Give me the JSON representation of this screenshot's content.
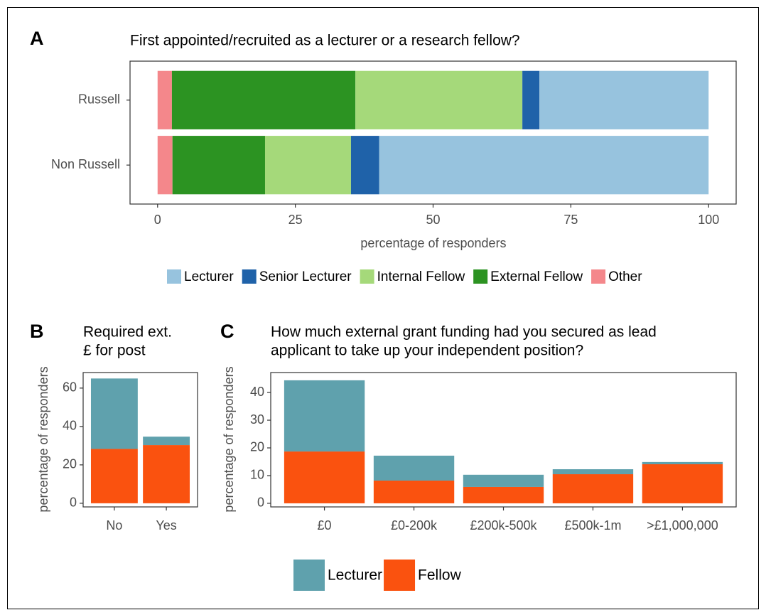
{
  "chart_data": [
    {
      "type": "bar",
      "panel": "A",
      "orientation": "horizontal",
      "stacked": true,
      "title": "First appointed/recruited as a lecturer or a research fellow?",
      "categories": [
        "Russell",
        "Non Russell"
      ],
      "series": [
        {
          "name": "Lecturer",
          "color": "#97c3de",
          "values": [
            30.7,
            59.8
          ]
        },
        {
          "name": "Senior Lecturer",
          "color": "#1f62a9",
          "values": [
            3.1,
            5.1
          ]
        },
        {
          "name": "Internal Fellow",
          "color": "#a5d97a",
          "values": [
            30.3,
            15.6
          ]
        },
        {
          "name": "External Fellow",
          "color": "#2c9322",
          "values": [
            33.3,
            16.8
          ]
        },
        {
          "name": "Other",
          "color": "#f4878b",
          "values": [
            2.6,
            2.7
          ]
        }
      ],
      "xlabel": "percentage of responders",
      "xlim": [
        -5,
        105
      ],
      "xticks": [
        0,
        25,
        50,
        75,
        100
      ],
      "grid": false,
      "legend": "bottom"
    },
    {
      "type": "bar",
      "panel": "B",
      "stacked": true,
      "title": [
        "Required ext.",
        "£ for post"
      ],
      "categories": [
        "No",
        "Yes"
      ],
      "series": [
        {
          "color": "#5fa1ad",
          "values": [
            36.7,
            4.4
          ]
        },
        {
          "color": "#fa520f",
          "values": [
            28.3,
            30.3
          ]
        }
      ],
      "ylabel": "percentage of responders",
      "ylim": [
        -1.9,
        68.1
      ],
      "yticks": [
        0,
        20,
        40,
        60
      ],
      "grid": false
    },
    {
      "type": "bar",
      "panel": "C",
      "stacked": true,
      "title": [
        "How much external grant funding had you secured as lead",
        "applicant to take up your independent position?"
      ],
      "categories": [
        "£0",
        "£0-200k",
        "£200k-500k",
        "£500k-1m",
        ">£1,000,000"
      ],
      "series": [
        {
          "name": "Lecturer",
          "color": "#5fa1ad",
          "values": [
            25.7,
            9.0,
            4.4,
            1.8,
            0.8
          ]
        },
        {
          "name": "Fellow",
          "color": "#fa520f",
          "values": [
            18.7,
            8.2,
            5.9,
            10.5,
            14.1
          ]
        }
      ],
      "ylabel": "percentage of responders",
      "ylim": [
        -1.3,
        47.2
      ],
      "yticks": [
        0,
        10,
        20,
        30,
        40
      ],
      "grid": false,
      "legend": "bottom"
    }
  ]
}
